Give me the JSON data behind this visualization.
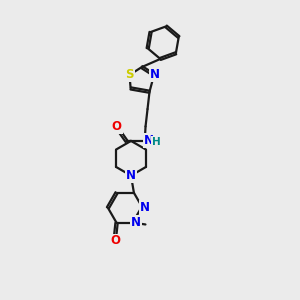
{
  "background_color": "#ebebeb",
  "bond_color": "#1a1a1a",
  "bond_width": 1.6,
  "atom_colors": {
    "N": "#0000ee",
    "O": "#ee0000",
    "S": "#cccc00",
    "H": "#008888",
    "C": "#1a1a1a"
  },
  "font_size_atom": 8.5
}
